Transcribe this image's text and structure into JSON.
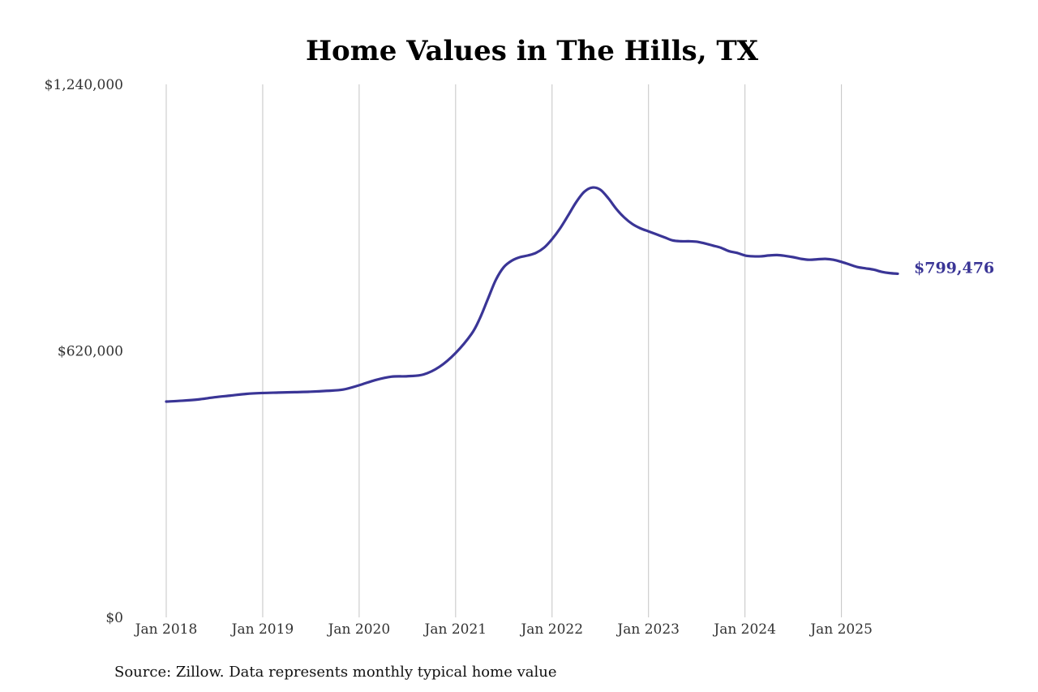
{
  "chart_data": {
    "type": "line",
    "title": "Home Values in The Hills, TX",
    "subtitle": "",
    "xlabel": "",
    "ylabel": "",
    "source": "Source: Zillow. Data represents monthly typical home value",
    "ylim": [
      0,
      1240000
    ],
    "y_ticks": [
      {
        "value": 0,
        "label": "$0"
      },
      {
        "value": 620000,
        "label": "$620,000"
      },
      {
        "value": 1240000,
        "label": "$1,240,000"
      }
    ],
    "x_ticks": [
      {
        "value": "2018-01",
        "label": "Jan 2018"
      },
      {
        "value": "2019-01",
        "label": "Jan 2019"
      },
      {
        "value": "2020-01",
        "label": "Jan 2020"
      },
      {
        "value": "2021-01",
        "label": "Jan 2021"
      },
      {
        "value": "2022-01",
        "label": "Jan 2022"
      },
      {
        "value": "2023-01",
        "label": "Jan 2023"
      },
      {
        "value": "2024-01",
        "label": "Jan 2024"
      },
      {
        "value": "2025-01",
        "label": "Jan 2025"
      }
    ],
    "xlim": [
      "2018-01",
      "2025-08"
    ],
    "grid": "vertical",
    "legend": "none",
    "colors": {
      "line": "#3a3596",
      "grid": "#c4c4c4"
    },
    "end_label": "$799,476",
    "series": [
      {
        "x": [
          "2018-01",
          "2018-03",
          "2018-05",
          "2018-07",
          "2018-09",
          "2018-11",
          "2019-01",
          "2019-03",
          "2019-05",
          "2019-07",
          "2019-09",
          "2019-11",
          "2020-01",
          "2020-03",
          "2020-05",
          "2020-07",
          "2020-09",
          "2020-11",
          "2021-01",
          "2021-03",
          "2021-04",
          "2021-05",
          "2021-06",
          "2021-07",
          "2021-08",
          "2021-09",
          "2021-10",
          "2021-11",
          "2021-12",
          "2022-01",
          "2022-02",
          "2022-03",
          "2022-04",
          "2022-05",
          "2022-06",
          "2022-07",
          "2022-08",
          "2022-09",
          "2022-10",
          "2022-11",
          "2022-12",
          "2023-01",
          "2023-02",
          "2023-03",
          "2023-04",
          "2023-05",
          "2023-06",
          "2023-07",
          "2023-08",
          "2023-09",
          "2023-10",
          "2023-11",
          "2023-12",
          "2024-01",
          "2024-02",
          "2024-03",
          "2024-04",
          "2024-05",
          "2024-06",
          "2024-07",
          "2024-08",
          "2024-09",
          "2024-10",
          "2024-11",
          "2024-12",
          "2025-01",
          "2025-02",
          "2025-03",
          "2025-04",
          "2025-05",
          "2025-06",
          "2025-07",
          "2025-08"
        ],
        "values": [
          502000,
          504000,
          507000,
          512000,
          516000,
          520000,
          522000,
          523000,
          524000,
          525000,
          527000,
          530000,
          540000,
          552000,
          560000,
          561000,
          565000,
          583000,
          615000,
          660000,
          695000,
          740000,
          785000,
          815000,
          830000,
          838000,
          842000,
          848000,
          860000,
          880000,
          905000,
          935000,
          966000,
          990000,
          1000000,
          995000,
          975000,
          950000,
          930000,
          915000,
          905000,
          898000,
          891000,
          884000,
          877000,
          875000,
          875000,
          874000,
          870000,
          865000,
          860000,
          852000,
          848000,
          842000,
          840000,
          840000,
          842000,
          843000,
          841000,
          838000,
          834000,
          832000,
          833000,
          834000,
          832000,
          827000,
          821000,
          815000,
          812000,
          809000,
          804000,
          801000,
          799476
        ]
      }
    ]
  }
}
